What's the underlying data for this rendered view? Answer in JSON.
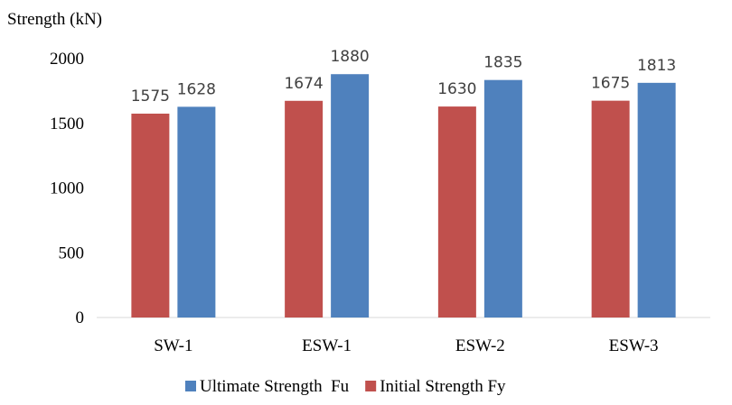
{
  "chart_data": {
    "type": "bar",
    "ylabel": "Strength (kN)",
    "categories": [
      "SW-1",
      "ESW-1",
      "ESW-2",
      "ESW-3"
    ],
    "series": [
      {
        "name": "Initial Strength Fy",
        "color": "#C0504D",
        "values": [
          1575,
          1674,
          1630,
          1675
        ]
      },
      {
        "name": "Ultimate Strength  Fu",
        "color": "#4F81BD",
        "values": [
          1628,
          1880,
          1835,
          1813
        ]
      }
    ],
    "legend_order": [
      1,
      0
    ],
    "ylim": [
      0,
      2000
    ],
    "yticks": [
      "0",
      "500",
      "1000",
      "1500",
      "2000"
    ],
    "grid": false,
    "legend_position": "bottom",
    "data_labels": true
  }
}
